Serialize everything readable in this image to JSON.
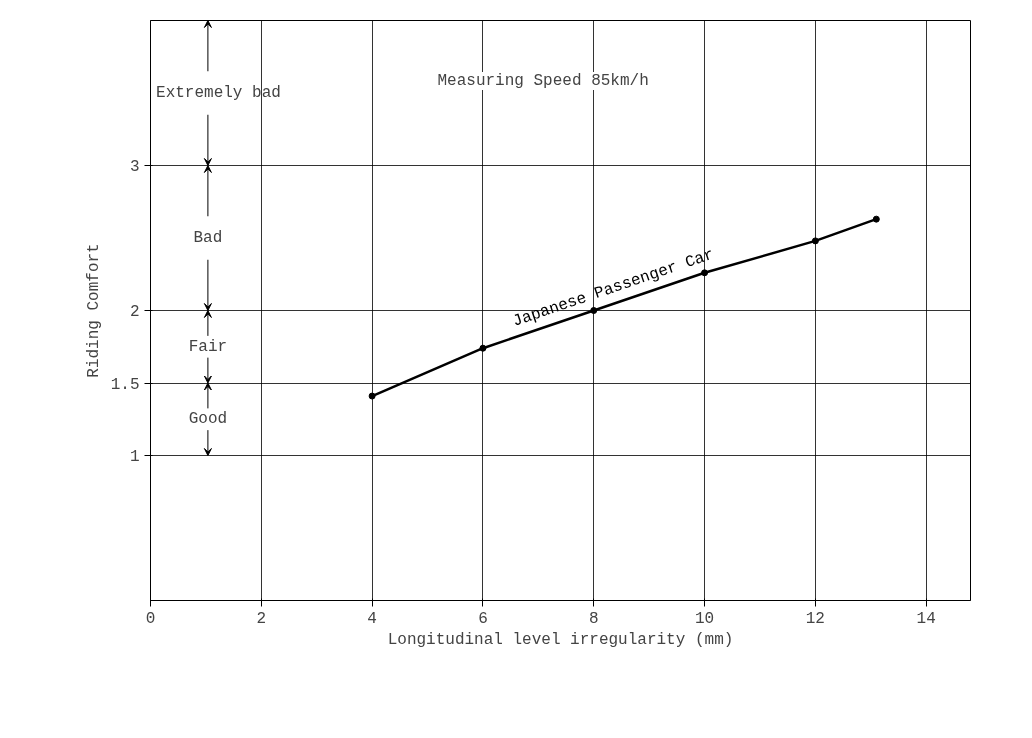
{
  "chart_data": {
    "type": "line",
    "xlabel": "Longitudinal level irregularity (mm)",
    "ylabel": "Riding Comfort",
    "annotations": [
      "Measuring Speed 85km/h",
      "Extremely bad",
      "Bad",
      "Fair",
      "Good"
    ],
    "series": [
      {
        "name": "Japanese Passenger Car",
        "color": "#000000",
        "x": [
          4,
          6,
          8,
          10,
          12,
          13.1
        ],
        "values": [
          1.41,
          1.74,
          2.0,
          2.26,
          2.48,
          2.63
        ]
      }
    ],
    "xlim": [
      0,
      14.8
    ],
    "xticks": [
      0,
      2,
      4,
      6,
      8,
      10,
      12,
      14
    ],
    "ylim": [
      0,
      4
    ],
    "yticks": [
      {
        "value": 1,
        "label": "1"
      },
      {
        "value": 1.5,
        "label": "1.5"
      },
      {
        "value": 2,
        "label": "2"
      },
      {
        "value": 3,
        "label": "3"
      }
    ],
    "grid": true,
    "marker": "circle",
    "line_style": "solid"
  }
}
